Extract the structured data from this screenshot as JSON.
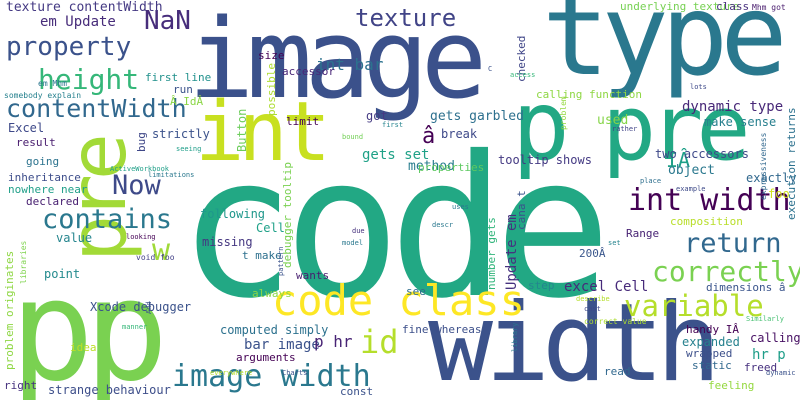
{
  "words": [
    {
      "text": "code",
      "color": "#22a884"
    },
    {
      "text": "image",
      "color": "#3b518b"
    },
    {
      "text": "type",
      "color": "#2a788e"
    },
    {
      "text": "width",
      "color": "#3b528b"
    },
    {
      "text": "int",
      "color": "#c8e020"
    },
    {
      "text": "pre",
      "color": "#22a884"
    },
    {
      "text": "p",
      "color": "#22a884"
    },
    {
      "text": "pp",
      "color": "#7ad151"
    },
    {
      "text": "pre",
      "color": "#a2da37"
    },
    {
      "text": "code class",
      "color": "#fde725"
    },
    {
      "text": "int width",
      "color": "#440154"
    },
    {
      "text": "image width",
      "color": "#2a788e"
    },
    {
      "text": "variable",
      "color": "#b5de2b"
    },
    {
      "text": "correctly",
      "color": "#7ad151"
    },
    {
      "text": "contains",
      "color": "#2a788e"
    },
    {
      "text": "return",
      "color": "#31688e"
    },
    {
      "text": "texture",
      "color": "#414487"
    },
    {
      "text": "property",
      "color": "#3b528b"
    },
    {
      "text": "height",
      "color": "#35b779"
    },
    {
      "text": "contentWidth",
      "color": "#31688e"
    },
    {
      "text": "NaN",
      "color": "#472d7b"
    },
    {
      "text": "Now",
      "color": "#3e4a89"
    },
    {
      "text": "id",
      "color": "#b5de2b"
    },
    {
      "text": "w",
      "color": "#a0da39"
    },
    {
      "text": "â",
      "color": "#440154"
    },
    {
      "text": "IÂ",
      "color": "#1fa088"
    },
    {
      "text": "texture contentWidth",
      "color": "#443983"
    },
    {
      "text": "em Update",
      "color": "#472c7a"
    },
    {
      "text": "int bar",
      "color": "#2c728e"
    },
    {
      "text": "dynamic type",
      "color": "#482878"
    },
    {
      "text": "excel Cell",
      "color": "#472a7a"
    },
    {
      "text": "bar image",
      "color": "#3b528b"
    },
    {
      "text": "p hr",
      "color": "#482475"
    },
    {
      "text": "hr p",
      "color": "#1f9e89"
    },
    {
      "text": "gets set",
      "color": "#1fa187"
    },
    {
      "text": "gets garbled",
      "color": "#2d708e"
    },
    {
      "text": "Update em",
      "color": "#46337f"
    },
    {
      "text": "tooltip shows",
      "color": "#443a83"
    },
    {
      "text": "Excel",
      "color": "#3e4989"
    },
    {
      "text": "method",
      "color": "#287d8e"
    },
    {
      "text": "used",
      "color": "#86d549"
    },
    {
      "text": "object",
      "color": "#2a788e"
    },
    {
      "text": "exactly",
      "color": "#31688e"
    },
    {
      "text": "two accessors",
      "color": "#3e4989"
    },
    {
      "text": "make sense",
      "color": "#277f8e"
    },
    {
      "text": "execution returns",
      "color": "#2c718e"
    },
    {
      "text": "underlying texture",
      "color": "#77d153"
    },
    {
      "text": "size",
      "color": "#440154"
    },
    {
      "text": "accessor",
      "color": "#482677"
    },
    {
      "text": "class",
      "color": "#472f7d"
    },
    {
      "text": "Mhm got",
      "color": "#481b6d"
    },
    {
      "text": "first line",
      "color": "#21918c"
    },
    {
      "text": "run",
      "color": "#3b528b"
    },
    {
      "text": "Â IdÂ",
      "color": "#8bd646"
    },
    {
      "text": "em Mhm",
      "color": "#2a768e"
    },
    {
      "text": "somebody explain",
      "color": "#26818e"
    },
    {
      "text": "calling function",
      "color": "#8fd744"
    },
    {
      "text": "checked",
      "color": "#404688"
    },
    {
      "text": "limit",
      "color": "#440154"
    },
    {
      "text": "possible",
      "color": "#addc30"
    },
    {
      "text": "got",
      "color": "#443a83"
    },
    {
      "text": "break",
      "color": "#3e4989"
    },
    {
      "text": "strictly",
      "color": "#3b528b"
    },
    {
      "text": "bug",
      "color": "#3f4788"
    },
    {
      "text": "result",
      "color": "#481c6e"
    },
    {
      "text": "going",
      "color": "#2c738e"
    },
    {
      "text": "inheritance",
      "color": "#3d4d8a"
    },
    {
      "text": "nowhere near",
      "color": "#1f9f88"
    },
    {
      "text": "declared",
      "color": "#482071"
    },
    {
      "text": "value",
      "color": "#25858e"
    },
    {
      "text": "point",
      "color": "#238a8d"
    },
    {
      "text": "Button",
      "color": "#6ccd5a"
    },
    {
      "text": "debugger tooltip",
      "color": "#7ad151"
    },
    {
      "text": "following",
      "color": "#1f978b"
    },
    {
      "text": "Cell",
      "color": "#1fa188"
    },
    {
      "text": "missing",
      "color": "#453781"
    },
    {
      "text": "t make",
      "color": "#2d708e"
    },
    {
      "text": "wants",
      "color": "#481f70"
    },
    {
      "text": "number gets",
      "color": "#31b57b"
    },
    {
      "text": "Range",
      "color": "#482374"
    },
    {
      "text": "200Â",
      "color": "#39568c"
    },
    {
      "text": "composition",
      "color": "#b8de29"
    },
    {
      "text": "dimensions â",
      "color": "#3a548c"
    },
    {
      "text": "foo",
      "color": "#d0e11c"
    },
    {
      "text": "cana t",
      "color": "#3b528b"
    },
    {
      "text": "properties",
      "color": "#5ec962"
    },
    {
      "text": "Xcode debugger",
      "color": "#3b528b"
    },
    {
      "text": "computed simply",
      "color": "#2c718e"
    },
    {
      "text": "arguments",
      "color": "#440154"
    },
    {
      "text": "always",
      "color": "#8bd646"
    },
    {
      "text": "strange behaviour",
      "color": "#3d4e8a"
    },
    {
      "text": "right",
      "color": "#46327e"
    },
    {
      "text": "fine whereas",
      "color": "#3c4f8a"
    },
    {
      "text": "see",
      "color": "#2e6e8e"
    },
    {
      "text": "correct value",
      "color": "#addc30"
    },
    {
      "text": "handy IÂ",
      "color": "#440154"
    },
    {
      "text": "expanded",
      "color": "#26818e"
    },
    {
      "text": "calling",
      "color": "#471063"
    },
    {
      "text": "wrapped",
      "color": "#3c4f8a"
    },
    {
      "text": "static",
      "color": "#31688e"
    },
    {
      "text": "freed",
      "color": "#46307e"
    },
    {
      "text": "feeling",
      "color": "#95d840"
    },
    {
      "text": "read",
      "color": "#31688e"
    },
    {
      "text": "const",
      "color": "#3b528b"
    },
    {
      "text": "step",
      "color": "#24868e"
    },
    {
      "text": "problem originates",
      "color": "#8fd744"
    },
    {
      "text": "idea",
      "color": "#bddf26"
    },
    {
      "text": "libraries",
      "color": "#7fd34e"
    },
    {
      "text": "problem",
      "color": "#95d840"
    },
    {
      "text": "Charts",
      "color": "#3b528b"
    },
    {
      "text": "everywhere",
      "color": "#b5de2b"
    },
    {
      "text": "void foo",
      "color": "#424086"
    },
    {
      "text": "rather",
      "color": "#414487"
    },
    {
      "text": "lots",
      "color": "#3e4989"
    },
    {
      "text": "access",
      "color": "#35b779"
    },
    {
      "text": "C",
      "color": "#3b528b"
    },
    {
      "text": "bound",
      "color": "#73d056"
    },
    {
      "text": "first",
      "color": "#25848e"
    },
    {
      "text": "seeing",
      "color": "#1f9e89"
    },
    {
      "text": "ActiveWorkbook",
      "color": "#1f9f88"
    },
    {
      "text": "limitations",
      "color": "#2a788e"
    },
    {
      "text": "looking",
      "color": "#440154"
    },
    {
      "text": "expressiveness",
      "color": "#31688e"
    },
    {
      "text": "place",
      "color": "#2e6f8e"
    },
    {
      "text": "example",
      "color": "#3e4a89"
    },
    {
      "text": "Similarly",
      "color": "#44bf70"
    },
    {
      "text": "dynamic",
      "color": "#3b528b"
    },
    {
      "text": "describe",
      "color": "#b5de2b"
    },
    {
      "text": "cast",
      "color": "#3e4989"
    },
    {
      "text": "library",
      "color": "#2a778e"
    },
    {
      "text": "set",
      "color": "#25848e"
    },
    {
      "text": "uses",
      "color": "#2a788e"
    },
    {
      "text": "model",
      "color": "#2a788e"
    },
    {
      "text": "due",
      "color": "#46327e"
    },
    {
      "text": "pattern",
      "color": "#3b528b"
    },
    {
      "text": "manner",
      "color": "#35b779"
    },
    {
      "text": "Add",
      "color": "#3b528b"
    },
    {
      "text": "omit",
      "color": "#7ad151"
    },
    {
      "text": "descr",
      "color": "#2a788e"
    },
    {
      "text": "via",
      "color": "#35b779"
    }
  ]
}
